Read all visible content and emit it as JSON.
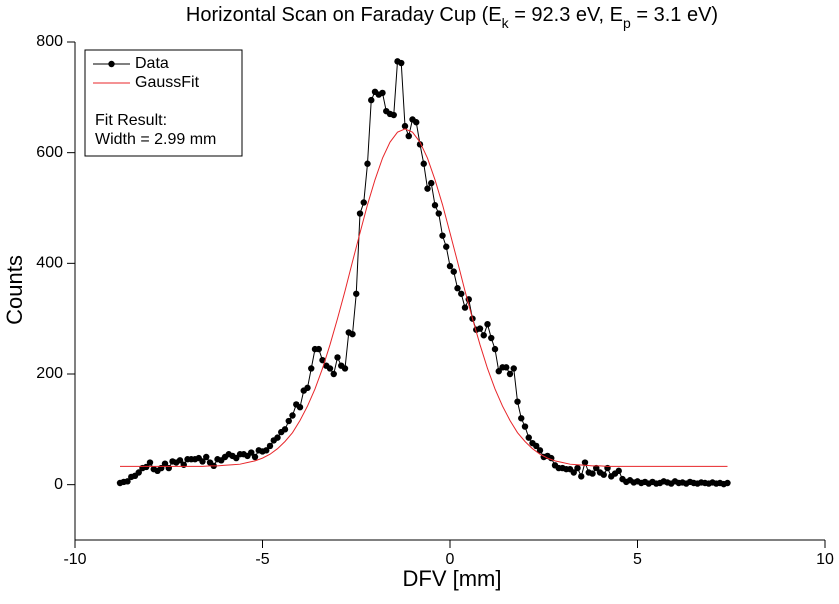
{
  "chart_data": {
    "type": "line",
    "title": [
      {
        "text": "Horizontal Scan on Faraday Cup (E"
      },
      {
        "text": "k",
        "sub": true
      },
      {
        "text": " = 92.3 eV, E"
      },
      {
        "text": "p",
        "sub": true
      },
      {
        "text": " = 3.1 eV)"
      }
    ],
    "xlabel": "DFV [mm]",
    "ylabel": "Counts",
    "xlim": [
      -10,
      10
    ],
    "ylim": [
      -100,
      800
    ],
    "xticks": [
      -10,
      -5,
      0,
      5,
      10
    ],
    "yticks": [
      0,
      200,
      400,
      600,
      800
    ],
    "series": [
      {
        "name": "Data",
        "color": "#000000",
        "marker": true,
        "x": [
          -8.8,
          -8.7,
          -8.6,
          -8.5,
          -8.4,
          -8.3,
          -8.2,
          -8.1,
          -8.0,
          -7.9,
          -7.8,
          -7.7,
          -7.6,
          -7.5,
          -7.4,
          -7.3,
          -7.2,
          -7.1,
          -7.0,
          -6.9,
          -6.8,
          -6.7,
          -6.6,
          -6.5,
          -6.4,
          -6.3,
          -6.2,
          -6.1,
          -6.0,
          -5.9,
          -5.8,
          -5.7,
          -5.6,
          -5.5,
          -5.4,
          -5.3,
          -5.2,
          -5.1,
          -5.0,
          -4.9,
          -4.8,
          -4.7,
          -4.6,
          -4.5,
          -4.4,
          -4.3,
          -4.2,
          -4.1,
          -4.0,
          -3.9,
          -3.8,
          -3.7,
          -3.6,
          -3.5,
          -3.4,
          -3.3,
          -3.2,
          -3.1,
          -3.0,
          -2.9,
          -2.8,
          -2.7,
          -2.6,
          -2.5,
          -2.4,
          -2.3,
          -2.2,
          -2.1,
          -2.0,
          -1.9,
          -1.8,
          -1.7,
          -1.6,
          -1.5,
          -1.4,
          -1.3,
          -1.2,
          -1.1,
          -1.0,
          -0.9,
          -0.8,
          -0.7,
          -0.6,
          -0.5,
          -0.4,
          -0.3,
          -0.2,
          -0.1,
          0.0,
          0.1,
          0.2,
          0.3,
          0.4,
          0.5,
          0.6,
          0.7,
          0.8,
          0.9,
          1.0,
          1.1,
          1.2,
          1.3,
          1.4,
          1.5,
          1.6,
          1.7,
          1.8,
          1.9,
          2.0,
          2.1,
          2.2,
          2.3,
          2.4,
          2.5,
          2.6,
          2.7,
          2.8,
          2.9,
          3.0,
          3.1,
          3.2,
          3.3,
          3.4,
          3.5,
          3.6,
          3.7,
          3.8,
          3.9,
          4.0,
          4.1,
          4.2,
          4.3,
          4.4,
          4.5,
          4.6,
          4.7,
          4.8,
          4.9,
          5.0,
          5.1,
          5.2,
          5.3,
          5.4,
          5.5,
          5.6,
          5.7,
          5.8,
          5.9,
          6.0,
          6.1,
          6.2,
          6.3,
          6.4,
          6.5,
          6.6,
          6.7,
          6.8,
          6.9,
          7.0,
          7.1,
          7.2,
          7.3,
          7.4
        ],
        "values": [
          3,
          5,
          6,
          14,
          16,
          22,
          30,
          32,
          40,
          28,
          25,
          30,
          38,
          30,
          42,
          40,
          44,
          36,
          46,
          46,
          46,
          48,
          42,
          50,
          40,
          34,
          46,
          44,
          50,
          55,
          52,
          48,
          55,
          55,
          52,
          58,
          50,
          62,
          60,
          62,
          70,
          80,
          85,
          95,
          100,
          115,
          125,
          145,
          140,
          170,
          175,
          210,
          245,
          245,
          225,
          215,
          210,
          200,
          230,
          215,
          210,
          275,
          272,
          345,
          490,
          510,
          580,
          695,
          710,
          705,
          708,
          675,
          670,
          668,
          765,
          762,
          648,
          630,
          660,
          655,
          615,
          580,
          535,
          545,
          505,
          490,
          450,
          430,
          395,
          385,
          355,
          345,
          320,
          335,
          300,
          280,
          282,
          270,
          290,
          265,
          245,
          205,
          212,
          212,
          200,
          210,
          150,
          120,
          105,
          85,
          75,
          70,
          62,
          50,
          52,
          48,
          35,
          30,
          30,
          28,
          28,
          22,
          30,
          15,
          40,
          22,
          20,
          30,
          22,
          18,
          30,
          15,
          20,
          25,
          10,
          5,
          8,
          4,
          6,
          3,
          5,
          2,
          5,
          2,
          3,
          6,
          4,
          2,
          6,
          3,
          4,
          2,
          5,
          3,
          2,
          4,
          3,
          2,
          4,
          2,
          3,
          1,
          3
        ]
      },
      {
        "name": "GaussFit",
        "color": "#e8262a",
        "marker": false,
        "x": [
          -8.8,
          -8.6,
          -8.4,
          -8.2,
          -8.0,
          -7.8,
          -7.6,
          -7.4,
          -7.2,
          -7.0,
          -6.8,
          -6.6,
          -6.4,
          -6.2,
          -6.0,
          -5.8,
          -5.6,
          -5.4,
          -5.2,
          -5.0,
          -4.8,
          -4.6,
          -4.4,
          -4.2,
          -4.0,
          -3.8,
          -3.6,
          -3.4,
          -3.2,
          -3.0,
          -2.8,
          -2.6,
          -2.4,
          -2.2,
          -2.0,
          -1.8,
          -1.6,
          -1.4,
          -1.2,
          -1.0,
          -0.8,
          -0.6,
          -0.4,
          -0.2,
          0.0,
          0.2,
          0.4,
          0.6,
          0.8,
          1.0,
          1.2,
          1.4,
          1.6,
          1.8,
          2.0,
          2.2,
          2.4,
          2.6,
          2.8,
          3.0,
          3.2,
          3.4,
          3.6,
          3.8,
          4.0,
          4.2,
          4.4,
          4.6,
          4.8,
          5.0,
          5.2,
          5.4,
          5.6,
          5.8,
          6.0,
          6.2,
          6.4,
          6.6,
          6.8,
          7.0,
          7.2,
          7.4
        ],
        "values": [
          33,
          33,
          33,
          33,
          33,
          33,
          33,
          33,
          33,
          33,
          33,
          33,
          34,
          34,
          35,
          36,
          37,
          40,
          43,
          48,
          55,
          65,
          78,
          94,
          116,
          142,
          173,
          210,
          253,
          300,
          350,
          403,
          455,
          506,
          551,
          590,
          619,
          637,
          643,
          637,
          619,
          590,
          551,
          506,
          455,
          403,
          350,
          300,
          253,
          210,
          173,
          142,
          116,
          94,
          78,
          65,
          55,
          48,
          43,
          40,
          37,
          36,
          35,
          34,
          34,
          33,
          33,
          33,
          33,
          33,
          33,
          33,
          33,
          33,
          33,
          33,
          33,
          33,
          33,
          33,
          33,
          33
        ]
      }
    ],
    "annotations": [
      "Fit Result:",
      "Width = 2.99 mm"
    ],
    "legend": "upper left"
  }
}
